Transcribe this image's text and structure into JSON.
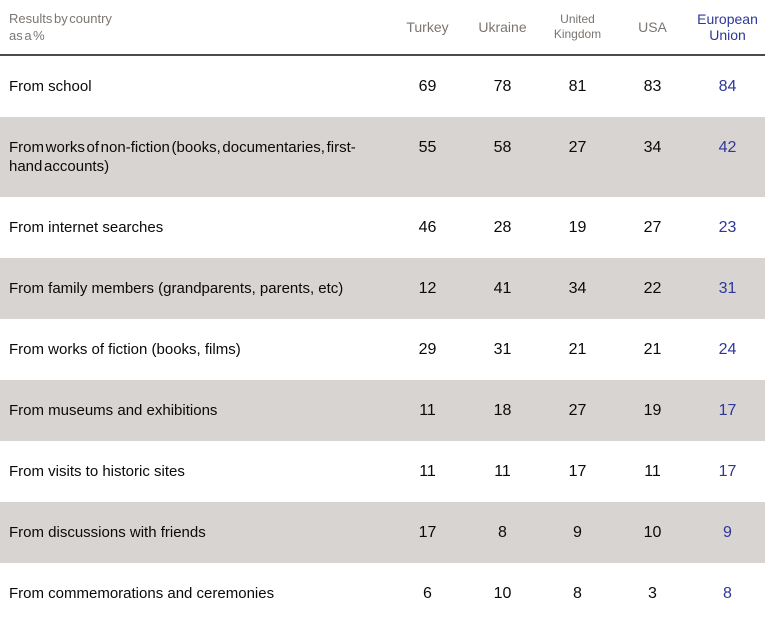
{
  "chart_data": {
    "type": "table",
    "title": "Results by country as a %",
    "corner_label": [
      "Results by country",
      "as a %"
    ],
    "columns": [
      "Turkey",
      "Ukraine",
      "United Kingdom",
      "USA",
      "European Union"
    ],
    "rows": [
      {
        "label": "From school",
        "values": [
          69,
          78,
          81,
          83,
          84
        ]
      },
      {
        "label": "From works of non-fiction (books, documentaries, first-hand accounts)",
        "values": [
          55,
          58,
          27,
          34,
          42
        ]
      },
      {
        "label": "From internet searches",
        "values": [
          46,
          28,
          19,
          27,
          23
        ]
      },
      {
        "label": "From family members (grandparents, parents, etc)",
        "values": [
          12,
          41,
          34,
          22,
          31
        ]
      },
      {
        "label": "From works of fiction (books, films)",
        "values": [
          29,
          31,
          21,
          21,
          24
        ]
      },
      {
        "label": "From museums and exhibitions",
        "values": [
          11,
          18,
          27,
          19,
          17
        ]
      },
      {
        "label": "From visits to historic sites",
        "values": [
          11,
          11,
          17,
          11,
          17
        ]
      },
      {
        "label": "From discussions with friends",
        "values": [
          17,
          8,
          9,
          10,
          9
        ]
      },
      {
        "label": "From commemorations and ceremonies",
        "values": [
          6,
          10,
          8,
          3,
          8
        ]
      }
    ],
    "layout": {
      "zebra_rows": "alternating starting at second data row",
      "value_alignment": "center",
      "header_rule": true
    },
    "colors": {
      "accent_blue": "#2e3799",
      "zebra_gray": "#d8d4d1",
      "header_text_gray": "#7b7672",
      "header_rule": "#4d4a48",
      "body_text": "#0a0a0a"
    }
  }
}
